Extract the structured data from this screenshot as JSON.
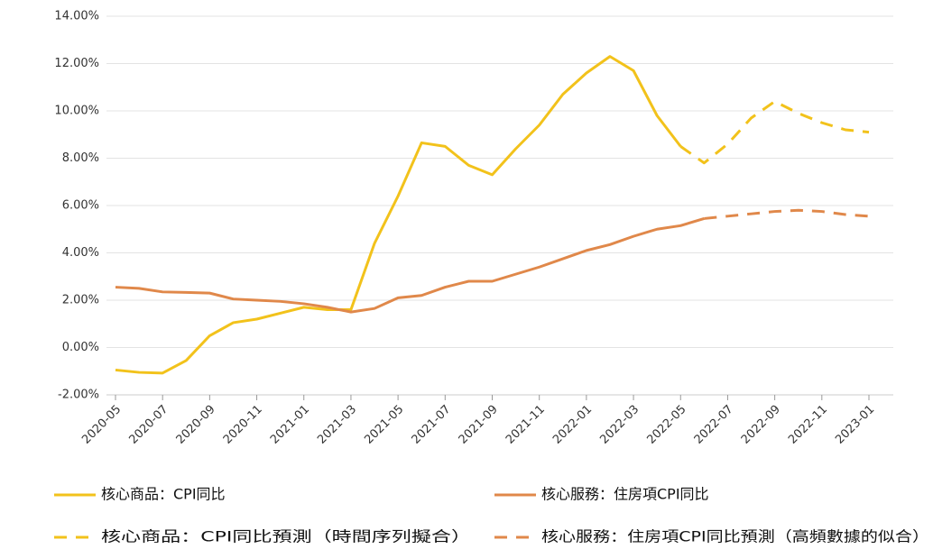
{
  "chart_data": {
    "type": "line",
    "categories": [
      "2020-05",
      null,
      "2020-07",
      null,
      "2020-09",
      null,
      "2020-11",
      null,
      "2021-01",
      null,
      "2021-03",
      null,
      "2021-05",
      null,
      "2021-07",
      null,
      "2021-09",
      null,
      "2021-11",
      null,
      "2022-01",
      null,
      "2022-03",
      null,
      "2022-05",
      null,
      "2022-07",
      null,
      "2022-09",
      null,
      "2022-11",
      null,
      "2023-01"
    ],
    "series": [
      {
        "name": "核心商品：CPI同比",
        "color": "#f2c21b",
        "dashed": false,
        "values": [
          -0.95,
          -1.05,
          -1.08,
          -0.55,
          0.5,
          1.05,
          1.2,
          1.45,
          1.7,
          1.6,
          1.6,
          4.4,
          6.4,
          8.65,
          8.5,
          7.7,
          7.3,
          8.4,
          9.4,
          10.7,
          11.6,
          12.3,
          11.7,
          9.8,
          8.5,
          null,
          null,
          null,
          null,
          null,
          null,
          null,
          null
        ]
      },
      {
        "name": "核心服務：住房項CPI同比",
        "color": "#e0884a",
        "dashed": false,
        "values": [
          2.55,
          2.5,
          2.35,
          2.33,
          2.3,
          2.05,
          2.0,
          1.95,
          1.85,
          1.7,
          1.5,
          1.65,
          2.1,
          2.2,
          2.55,
          2.8,
          2.8,
          3.1,
          3.4,
          3.75,
          4.1,
          4.35,
          4.7,
          5.0,
          5.15,
          5.45,
          null,
          null,
          null,
          null,
          null,
          null,
          null
        ]
      },
      {
        "name": "核心商品：CPI同比預測（時間序列擬合）",
        "color": "#f2c21b",
        "dashed": true,
        "values": [
          null,
          null,
          null,
          null,
          null,
          null,
          null,
          null,
          null,
          null,
          null,
          null,
          null,
          null,
          null,
          null,
          null,
          null,
          null,
          null,
          null,
          null,
          null,
          null,
          8.5,
          7.8,
          8.6,
          9.7,
          10.4,
          9.9,
          9.5,
          9.2,
          9.1
        ]
      },
      {
        "name": "核心服務：住房項CPI同比預測（高頻數據的似合）",
        "color": "#e0884a",
        "dashed": true,
        "values": [
          null,
          null,
          null,
          null,
          null,
          null,
          null,
          null,
          null,
          null,
          null,
          null,
          null,
          null,
          null,
          null,
          null,
          null,
          null,
          null,
          null,
          null,
          null,
          null,
          null,
          5.45,
          5.55,
          5.65,
          5.75,
          5.8,
          5.75,
          5.62,
          5.55
        ]
      }
    ],
    "ylim": [
      -2,
      14
    ],
    "yticks": [
      {
        "value": -2,
        "label": "-2.00%"
      },
      {
        "value": 0,
        "label": "0.00%"
      },
      {
        "value": 2,
        "label": "2.00%"
      },
      {
        "value": 4,
        "label": "4.00%"
      },
      {
        "value": 6,
        "label": "6.00%"
      },
      {
        "value": 8,
        "label": "8.00%"
      },
      {
        "value": 10,
        "label": "10.00%"
      },
      {
        "value": 12,
        "label": "12.00%"
      },
      {
        "value": 14,
        "label": "14.00%"
      }
    ],
    "grid": true
  }
}
